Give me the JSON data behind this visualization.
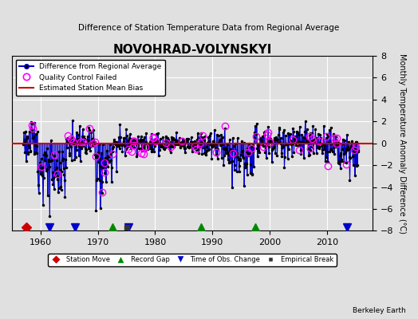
{
  "title": "NOVOHRAD-VOLYNSKYI",
  "subtitle": "Difference of Station Temperature Data from Regional Average",
  "ylabel": "Monthly Temperature Anomaly Difference (°C)",
  "xlim": [
    1955,
    2018
  ],
  "ylim": [
    -8,
    8
  ],
  "yticks": [
    -8,
    -6,
    -4,
    -2,
    0,
    2,
    4,
    6,
    8
  ],
  "xticks": [
    1960,
    1970,
    1980,
    1990,
    2000,
    2010
  ],
  "background_color": "#e0e0e0",
  "plot_bg_color": "#e0e0e0",
  "line_color": "#0000cc",
  "bias_color": "#cc0000",
  "station_move_color": "#cc0000",
  "record_gap_color": "#008800",
  "obs_change_color": "#0000cc",
  "emp_break_color": "#333333",
  "qc_fail_color": "#ff00ff",
  "note": "Berkeley Earth",
  "station_moves": [
    1957.5
  ],
  "record_gaps": [
    1972.5,
    1988.0,
    1997.5
  ],
  "obs_changes": [
    1961.5,
    1966.0,
    1975.3,
    2013.5
  ],
  "emp_breaks": [
    1975.0
  ]
}
